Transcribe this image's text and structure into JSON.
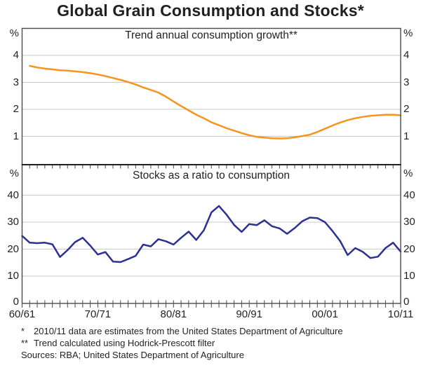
{
  "title": "Global Grain Consumption and Stocks*",
  "panels": {
    "top": {
      "title": "Trend annual consumption growth**",
      "unit_left": "%",
      "unit_right": "%"
    },
    "bottom": {
      "title": "Stocks as a ratio to consumption",
      "unit_left": "%",
      "unit_right": "%"
    }
  },
  "x_axis": {
    "decade_labels": [
      "60/61",
      "70/71",
      "80/81",
      "90/91",
      "00/01",
      "10/11"
    ]
  },
  "footnotes": [
    {
      "marker": "*",
      "text": "2010/11 data are estimates from the United States Department of Agriculture"
    },
    {
      "marker": "**",
      "text": "Trend calculated using Hodrick-Prescott filter"
    }
  ],
  "sources": "Sources: RBA; United States Department of Agriculture",
  "colors": {
    "trend_line": "#F7941E",
    "stocks_line": "#2B3192",
    "grid": "#C9C9C9",
    "frame": "#4A4A4C",
    "divider": "#231F20",
    "text": "#231F20"
  },
  "chart_data": [
    {
      "type": "line",
      "panel": "top",
      "title": "Trend annual consumption growth**",
      "ylabel": "%",
      "ylim": [
        0,
        5
      ],
      "yticks": [
        1,
        2,
        3,
        4
      ],
      "grid": true,
      "x_start": "1961/62",
      "x_end": "2010/11",
      "frequency": "annual",
      "series": [
        {
          "name": "Trend annual consumption growth",
          "color": "#F7941E",
          "start_index": 1,
          "values": [
            3.61,
            3.55,
            3.51,
            3.48,
            3.45,
            3.43,
            3.41,
            3.38,
            3.34,
            3.29,
            3.23,
            3.16,
            3.09,
            3.01,
            2.92,
            2.81,
            2.72,
            2.62,
            2.47,
            2.29,
            2.12,
            1.96,
            1.8,
            1.67,
            1.52,
            1.41,
            1.3,
            1.21,
            1.12,
            1.04,
            0.98,
            0.95,
            0.93,
            0.92,
            0.93,
            0.96,
            1.01,
            1.06,
            1.16,
            1.28,
            1.4,
            1.51,
            1.6,
            1.67,
            1.72,
            1.76,
            1.78,
            1.8,
            1.8,
            1.78
          ]
        }
      ]
    },
    {
      "type": "line",
      "panel": "bottom",
      "title": "Stocks as a ratio to consumption",
      "ylabel": "%",
      "ylim": [
        0,
        50
      ],
      "yticks": [
        0,
        10,
        20,
        30,
        40
      ],
      "grid": true,
      "x_start": "1960/61",
      "x_end": "2010/11",
      "frequency": "annual",
      "x_decade_labels": [
        "60/61",
        "70/71",
        "80/81",
        "90/91",
        "00/01",
        "10/11"
      ],
      "series": [
        {
          "name": "Stocks as a ratio to consumption",
          "color": "#2B3192",
          "start_index": 0,
          "values": [
            24.9,
            22.4,
            22.2,
            22.4,
            21.8,
            17.1,
            19.6,
            22.6,
            24.2,
            21.3,
            18.0,
            18.9,
            15.4,
            15.2,
            16.3,
            17.5,
            21.7,
            21.0,
            23.7,
            22.9,
            21.7,
            24.2,
            26.5,
            23.4,
            27.0,
            33.6,
            36.0,
            32.8,
            29.0,
            26.4,
            29.3,
            28.9,
            30.7,
            28.5,
            27.7,
            25.7,
            27.8,
            30.3,
            31.7,
            31.5,
            30.0,
            26.7,
            23.0,
            17.8,
            20.4,
            19.0,
            16.7,
            17.2,
            20.4,
            22.4,
            19.1
          ]
        }
      ]
    }
  ]
}
